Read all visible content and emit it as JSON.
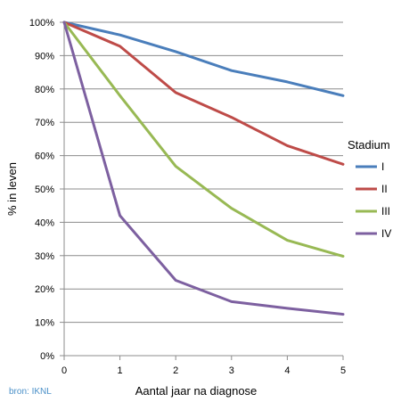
{
  "chart_data": {
    "type": "line",
    "x": [
      0,
      1,
      2,
      3,
      4,
      5
    ],
    "series": [
      {
        "name": "I",
        "color": "#4A7EBB",
        "values": [
          100,
          96.2,
          91.2,
          85.5,
          82.1,
          78.0
        ]
      },
      {
        "name": "II",
        "color": "#BE4B48",
        "values": [
          100,
          92.8,
          78.9,
          71.5,
          63.0,
          57.4
        ]
      },
      {
        "name": "III",
        "color": "#98B954",
        "values": [
          100,
          78.0,
          56.8,
          44.2,
          34.6,
          29.8
        ]
      },
      {
        "name": "IV",
        "color": "#7D60A0",
        "values": [
          100,
          42.0,
          22.6,
          16.2,
          14.2,
          12.4
        ]
      }
    ],
    "xlabel": "Aantal jaar na diagnose",
    "ylabel": "% in leven",
    "xlim": [
      0,
      5
    ],
    "ylim": [
      0,
      100
    ],
    "x_ticks": [
      "0",
      "1",
      "2",
      "3",
      "4",
      "5"
    ],
    "y_ticks": [
      "0%",
      "10%",
      "20%",
      "30%",
      "40%",
      "50%",
      "60%",
      "70%",
      "80%",
      "90%",
      "100%"
    ],
    "grid": true,
    "legend_title": "Stadium",
    "legend_position": "right",
    "source": "bron: IKNL"
  }
}
